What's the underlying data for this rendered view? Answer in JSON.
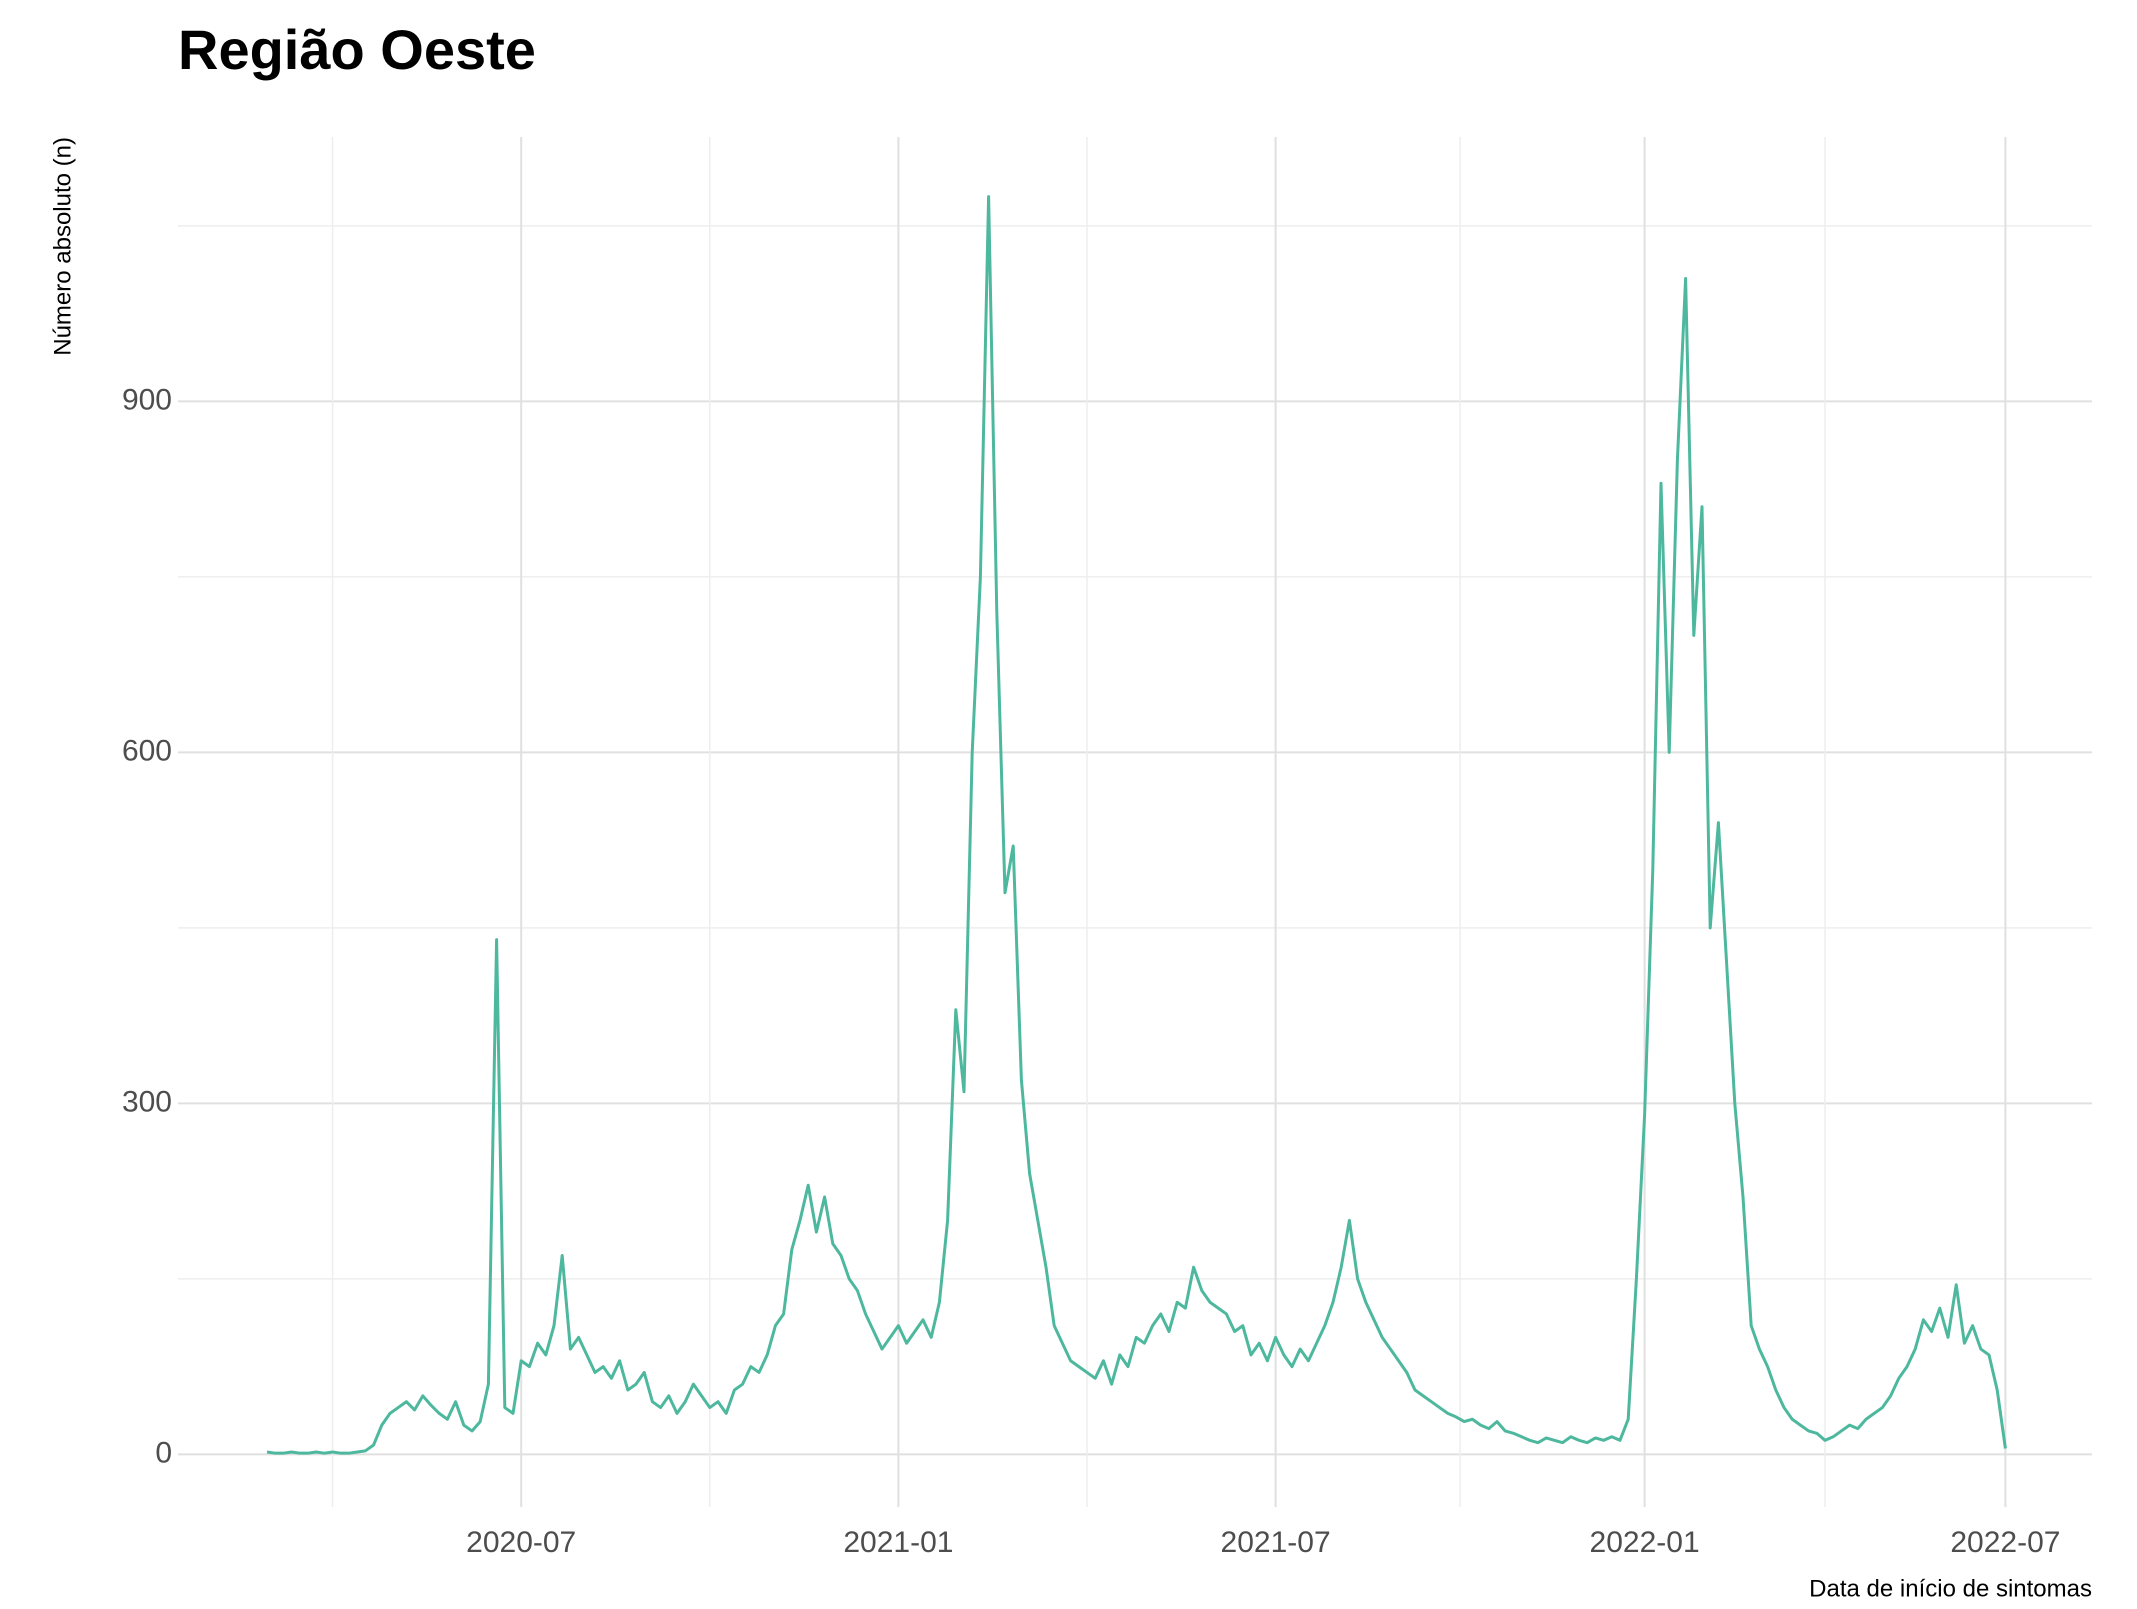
{
  "chart_data": {
    "type": "line",
    "title": "Região Oeste",
    "ylabel": "Número absoluto (n)",
    "xlabel": "Data de início de sintomas",
    "color": "#4db89e",
    "grid": true,
    "categories": [
      null,
      null,
      null,
      null,
      null,
      null,
      null,
      null,
      null,
      null,
      null,
      null,
      null,
      null,
      null,
      null,
      null,
      null,
      null,
      null,
      null,
      null,
      null,
      null,
      null,
      null,
      null,
      null,
      null,
      null,
      null,
      "2020-07",
      null,
      null,
      null,
      null,
      null,
      null,
      null,
      null,
      null,
      null,
      null,
      null,
      null,
      null,
      null,
      null,
      null,
      null,
      null,
      null,
      null,
      null,
      null,
      null,
      null,
      null,
      null,
      null,
      null,
      null,
      null,
      null,
      null,
      null,
      null,
      null,
      null,
      null,
      null,
      null,
      null,
      null,
      null,
      null,
      null,
      "2021-01",
      null,
      null,
      null,
      null,
      null,
      null,
      null,
      null,
      null,
      null,
      null,
      null,
      null,
      null,
      null,
      null,
      null,
      null,
      null,
      null,
      null,
      null,
      null,
      null,
      null,
      null,
      null,
      null,
      null,
      null,
      null,
      null,
      null,
      null,
      null,
      null,
      null,
      null,
      null,
      null,
      null,
      null,
      null,
      null,
      null,
      "2021-07",
      null,
      null,
      null,
      null,
      null,
      null,
      null,
      null,
      null,
      null,
      null,
      null,
      null,
      null,
      null,
      null,
      null,
      null,
      null,
      null,
      null,
      null,
      null,
      null,
      null,
      null,
      null,
      null,
      null,
      null,
      null,
      null,
      null,
      null,
      null,
      null,
      null,
      null,
      null,
      null,
      null,
      null,
      null,
      null,
      "2022-01",
      null,
      null,
      null,
      null,
      null,
      null,
      null,
      null,
      null,
      null,
      null,
      null,
      null,
      null,
      null,
      null,
      null,
      null,
      null,
      null,
      null,
      null,
      null,
      null,
      null,
      null,
      null,
      null,
      null,
      null,
      null,
      null,
      null,
      null,
      null,
      null,
      null,
      null,
      null,
      null,
      null,
      null,
      null,
      "2022-07"
    ],
    "values": [
      2,
      1,
      1,
      2,
      1,
      1,
      2,
      1,
      2,
      1,
      1,
      2,
      3,
      8,
      25,
      35,
      40,
      45,
      38,
      50,
      42,
      35,
      30,
      45,
      25,
      20,
      28,
      60,
      440,
      40,
      35,
      80,
      75,
      95,
      85,
      110,
      170,
      90,
      100,
      85,
      70,
      75,
      65,
      80,
      55,
      60,
      70,
      45,
      40,
      50,
      35,
      45,
      60,
      50,
      40,
      45,
      35,
      55,
      60,
      75,
      70,
      85,
      110,
      120,
      175,
      200,
      230,
      190,
      220,
      180,
      170,
      150,
      140,
      120,
      105,
      90,
      100,
      110,
      95,
      105,
      115,
      100,
      130,
      200,
      380,
      310,
      600,
      750,
      1075,
      720,
      480,
      520,
      320,
      240,
      200,
      160,
      110,
      95,
      80,
      75,
      70,
      65,
      80,
      60,
      85,
      75,
      100,
      95,
      110,
      120,
      105,
      130,
      125,
      160,
      140,
      130,
      125,
      120,
      105,
      110,
      85,
      95,
      80,
      100,
      85,
      75,
      90,
      80,
      95,
      110,
      130,
      160,
      200,
      150,
      130,
      115,
      100,
      90,
      80,
      70,
      55,
      50,
      45,
      40,
      35,
      32,
      28,
      30,
      25,
      22,
      28,
      20,
      18,
      15,
      12,
      10,
      14,
      12,
      10,
      15,
      12,
      10,
      14,
      12,
      15,
      12,
      30,
      150,
      290,
      500,
      830,
      600,
      850,
      1005,
      700,
      810,
      450,
      540,
      420,
      300,
      220,
      110,
      90,
      75,
      55,
      40,
      30,
      25,
      20,
      18,
      12,
      15,
      20,
      25,
      22,
      30,
      35,
      40,
      50,
      65,
      75,
      90,
      115,
      105,
      125,
      100,
      145,
      95,
      110,
      90,
      85,
      55,
      5
    ],
    "ylim": [
      -45,
      1126
    ],
    "yticks": [
      0,
      300,
      600,
      900
    ]
  }
}
